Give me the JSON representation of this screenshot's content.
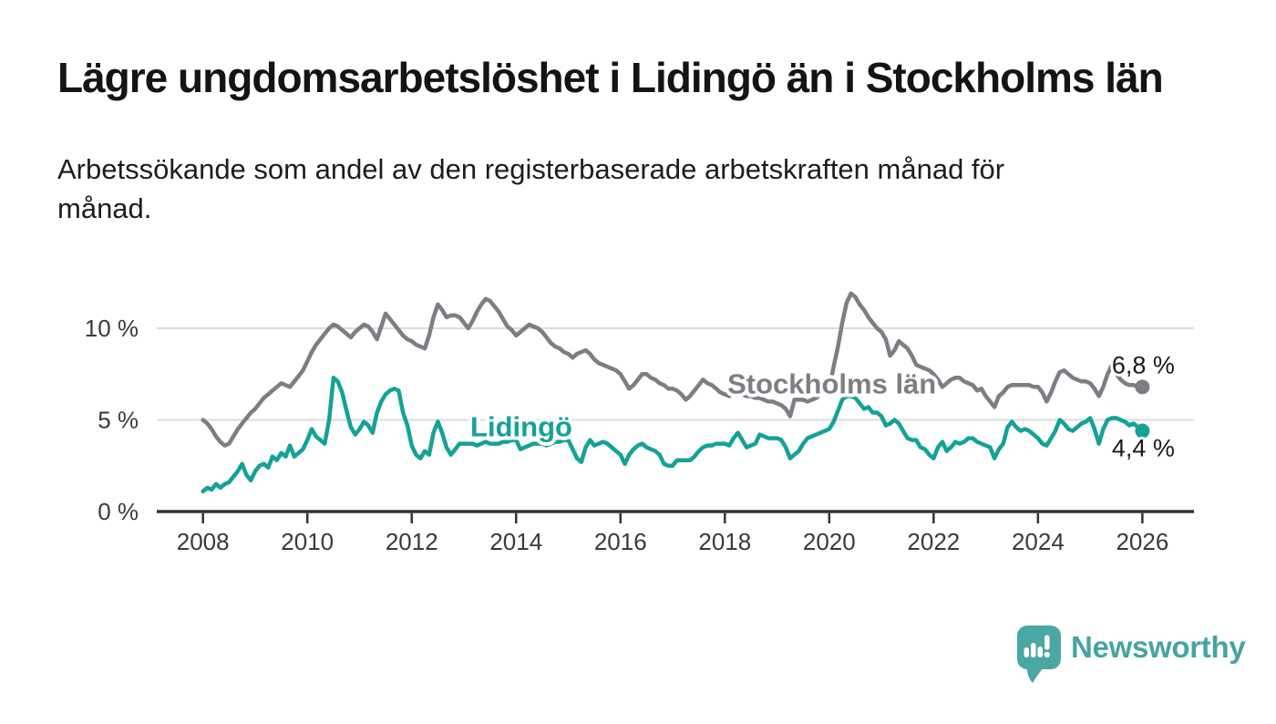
{
  "chart_data": {
    "type": "line",
    "title": "Lägre ungdomsarbetslöshet i Lidingö än i Stockholms län",
    "subtitle_lines": [
      "Arbetssökande som andel av den registerbaserade arbetskraften månad för",
      "månad."
    ],
    "unit": "%",
    "x_start": 2008.0,
    "x_step": "1 month",
    "grid": "horizontal",
    "axis_color": "#333333",
    "tick_text_color": "#3a3a3a",
    "grid_color": "#d8d8d8",
    "end_label_color": "#1a1a1a",
    "x_axis": {
      "tick_values": [
        2008,
        2010,
        2012,
        2014,
        2016,
        2018,
        2020,
        2022,
        2024,
        2026
      ],
      "tick_labels": [
        "2008",
        "2010",
        "2012",
        "2014",
        "2016",
        "2018",
        "2020",
        "2022",
        "2024",
        "2026"
      ]
    },
    "y_axis": {
      "tick_values": [
        0,
        5,
        10
      ],
      "tick_labels": [
        "0 %",
        "5 %",
        "10 %"
      ],
      "range": [
        0,
        12.5
      ]
    },
    "series": [
      {
        "id": "stockholm",
        "name": "Stockholms län",
        "color": "#7d7d84",
        "end_label": "6,8 %",
        "end_value": 6.8,
        "end_label_position": "above",
        "values": [
          5.0,
          4.8,
          4.5,
          4.1,
          3.8,
          3.6,
          3.7,
          4.1,
          4.5,
          4.8,
          5.1,
          5.4,
          5.6,
          5.9,
          6.2,
          6.4,
          6.6,
          6.8,
          7.0,
          6.9,
          6.8,
          7.1,
          7.4,
          7.7,
          8.2,
          8.7,
          9.1,
          9.4,
          9.7,
          10.0,
          10.2,
          10.1,
          9.9,
          9.7,
          9.5,
          9.8,
          10.0,
          10.2,
          10.1,
          9.8,
          9.4,
          10.1,
          10.8,
          10.5,
          10.2,
          9.9,
          9.6,
          9.4,
          9.3,
          9.1,
          9.0,
          8.9,
          9.6,
          10.6,
          11.3,
          11.0,
          10.6,
          10.7,
          10.7,
          10.6,
          10.3,
          10.0,
          10.4,
          10.9,
          11.3,
          11.6,
          11.5,
          11.2,
          10.9,
          10.5,
          10.1,
          9.9,
          9.6,
          9.8,
          10.0,
          10.2,
          10.1,
          10.0,
          9.8,
          9.5,
          9.2,
          9.0,
          8.9,
          8.7,
          8.6,
          8.4,
          8.6,
          8.7,
          8.8,
          8.6,
          8.3,
          8.1,
          8.0,
          7.9,
          7.8,
          7.7,
          7.5,
          7.1,
          6.7,
          6.9,
          7.2,
          7.5,
          7.5,
          7.3,
          7.2,
          7.0,
          6.9,
          6.7,
          6.7,
          6.6,
          6.4,
          6.1,
          6.3,
          6.6,
          6.9,
          7.2,
          7.0,
          6.9,
          6.7,
          6.5,
          6.4,
          6.3,
          6.5,
          6.5,
          6.4,
          6.3,
          6.3,
          6.2,
          6.2,
          6.1,
          6.0,
          6.0,
          5.9,
          5.8,
          5.6,
          5.2,
          6.1,
          6.1,
          6.1,
          6.0,
          6.1,
          6.2,
          6.4,
          6.5,
          6.7,
          7.9,
          9.0,
          10.3,
          11.4,
          11.9,
          11.7,
          11.3,
          11.0,
          10.6,
          10.3,
          10.0,
          9.8,
          9.4,
          8.5,
          8.8,
          9.3,
          9.1,
          8.9,
          8.5,
          8.0,
          7.9,
          7.8,
          7.7,
          7.5,
          7.2,
          6.8,
          7.0,
          7.2,
          7.3,
          7.3,
          7.1,
          7.0,
          6.9,
          6.6,
          6.7,
          6.3,
          6.0,
          5.7,
          6.3,
          6.5,
          6.8,
          6.9,
          6.9,
          6.9,
          6.9,
          6.9,
          6.8,
          6.8,
          6.5,
          6.0,
          6.5,
          7.1,
          7.6,
          7.7,
          7.5,
          7.3,
          7.2,
          7.1,
          7.1,
          7.0,
          6.7,
          6.3,
          6.8,
          7.5,
          8.0,
          7.5,
          7.2,
          7.0,
          6.9,
          6.9,
          6.8,
          6.8
        ]
      },
      {
        "id": "lidingo",
        "name": "Lidingö",
        "color": "#14a296",
        "end_label": "4,4 %",
        "end_value": 4.4,
        "end_label_position": "below",
        "values": [
          1.1,
          1.3,
          1.2,
          1.5,
          1.3,
          1.5,
          1.6,
          1.9,
          2.2,
          2.6,
          2.0,
          1.7,
          2.2,
          2.5,
          2.6,
          2.4,
          3.0,
          2.8,
          3.2,
          3.0,
          3.6,
          3.0,
          3.2,
          3.4,
          3.9,
          4.5,
          4.1,
          3.9,
          3.7,
          5.0,
          7.3,
          7.1,
          6.5,
          5.5,
          4.6,
          4.2,
          4.5,
          4.9,
          4.7,
          4.3,
          5.4,
          6.0,
          6.4,
          6.6,
          6.7,
          6.6,
          5.4,
          4.7,
          3.6,
          3.1,
          2.9,
          3.3,
          3.1,
          4.3,
          4.9,
          4.3,
          3.5,
          3.1,
          3.4,
          3.7,
          3.7,
          3.7,
          3.7,
          3.6,
          3.7,
          3.8,
          3.7,
          3.7,
          3.7,
          3.8,
          3.8,
          3.9,
          3.9,
          3.4,
          3.5,
          3.6,
          3.7,
          3.7,
          3.7,
          3.6,
          3.7,
          3.8,
          3.8,
          3.9,
          3.9,
          3.4,
          2.9,
          2.7,
          3.5,
          3.9,
          3.6,
          3.7,
          3.8,
          3.7,
          3.5,
          3.3,
          3.1,
          2.6,
          3.1,
          3.4,
          3.6,
          3.7,
          3.5,
          3.4,
          3.3,
          3.1,
          2.6,
          2.5,
          2.5,
          2.8,
          2.8,
          2.8,
          2.8,
          3.0,
          3.3,
          3.5,
          3.6,
          3.6,
          3.7,
          3.7,
          3.7,
          3.6,
          4.0,
          4.3,
          3.9,
          3.5,
          3.6,
          3.7,
          4.2,
          4.1,
          4.0,
          4.0,
          4.0,
          3.9,
          3.5,
          2.9,
          3.1,
          3.3,
          3.7,
          4.0,
          4.1,
          4.2,
          4.3,
          4.4,
          4.5,
          4.9,
          5.5,
          6.1,
          6.3,
          6.3,
          6.2,
          5.9,
          5.6,
          5.7,
          5.4,
          5.4,
          5.2,
          4.7,
          4.8,
          5.0,
          4.8,
          4.4,
          4.0,
          3.9,
          3.9,
          3.5,
          3.4,
          3.1,
          2.9,
          3.5,
          3.8,
          3.3,
          3.5,
          3.8,
          3.7,
          3.8,
          4.0,
          4.0,
          3.8,
          3.7,
          3.6,
          3.5,
          2.9,
          3.4,
          3.7,
          4.6,
          4.9,
          4.6,
          4.4,
          4.5,
          4.4,
          4.2,
          4.0,
          3.7,
          3.6,
          4.0,
          4.4,
          5.0,
          4.8,
          4.5,
          4.4,
          4.6,
          4.8,
          4.9,
          5.1,
          4.5,
          3.7,
          4.5,
          5.0,
          5.1,
          5.1,
          5.0,
          4.9,
          4.7,
          4.8,
          4.6,
          4.4
        ]
      }
    ],
    "annotations": [
      {
        "id": "stockholm",
        "text": "Stockholms län",
        "x": 2020.05,
        "y": 7.0,
        "color": "#7d7d84"
      },
      {
        "id": "lidingo",
        "text": "Lidingö",
        "x": 2014.1,
        "y": 4.65,
        "color": "#14a296"
      }
    ]
  },
  "footer": {
    "brand": "Newsworthy",
    "brand_color": "#46a4a0",
    "logo_color": "#4ba7a2",
    "logo_icon": "speech-bubble-bar-chart-icon"
  }
}
